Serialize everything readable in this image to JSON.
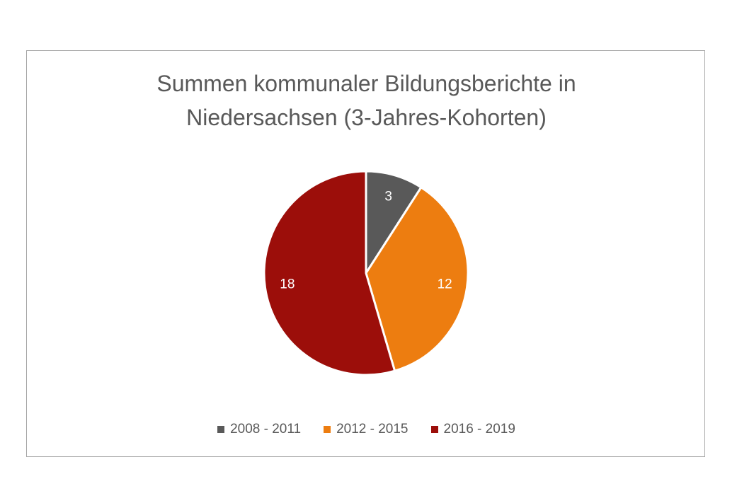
{
  "chart_data": {
    "type": "pie",
    "title_lines": [
      "Summen kommunaler Bildungsberichte in",
      "Niedersachsen (3-Jahres-Kohorten)"
    ],
    "categories": [
      "2008 - 2011",
      "2012 - 2015",
      "2016 - 2019"
    ],
    "values": [
      3,
      12,
      18
    ],
    "data_labels": [
      "3",
      "12",
      "18"
    ],
    "colors": [
      "#595959",
      "#ed7d10",
      "#9c0e0a"
    ],
    "label_color": "#ffffff",
    "legend_position": "bottom"
  }
}
